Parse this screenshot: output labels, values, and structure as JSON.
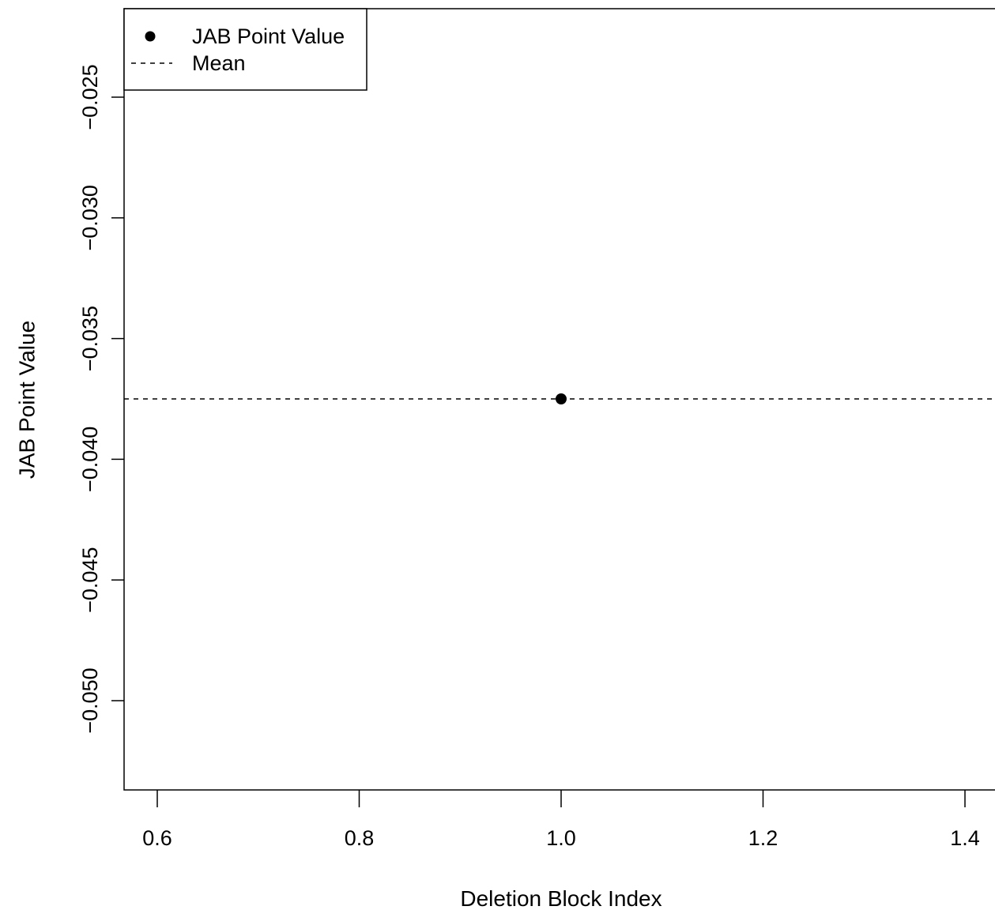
{
  "chart_data": {
    "type": "scatter",
    "xlabel": "Deletion Block Index",
    "ylabel": "JAB Point Value",
    "xlim": [
      0.6,
      1.4
    ],
    "ylim": [
      -0.05,
      -0.025
    ],
    "x_ticks": [
      {
        "value": 0.6,
        "label": "0.6"
      },
      {
        "value": 0.8,
        "label": "0.8"
      },
      {
        "value": 1.0,
        "label": "1.0"
      },
      {
        "value": 1.2,
        "label": "1.2"
      },
      {
        "value": 1.4,
        "label": "1.4"
      }
    ],
    "y_ticks": [
      {
        "value": -0.025,
        "label": "−0.025"
      },
      {
        "value": -0.03,
        "label": "−0.030"
      },
      {
        "value": -0.035,
        "label": "−0.035"
      },
      {
        "value": -0.04,
        "label": "−0.040"
      },
      {
        "value": -0.045,
        "label": "−0.045"
      },
      {
        "value": -0.05,
        "label": "−0.050"
      }
    ],
    "series": [
      {
        "name": "JAB Point Value",
        "kind": "points",
        "x": [
          1.0
        ],
        "y": [
          -0.0375
        ],
        "color": "#000000"
      }
    ],
    "reference_lines": [
      {
        "name": "Mean",
        "orientation": "horizontal",
        "y": -0.0375,
        "style": "dashed",
        "color": "#000000"
      }
    ],
    "legend": {
      "position": "top-left",
      "entries": [
        {
          "label": "JAB Point Value",
          "symbol": "point"
        },
        {
          "label": "Mean",
          "symbol": "dashed-line"
        }
      ]
    },
    "grid": false
  }
}
